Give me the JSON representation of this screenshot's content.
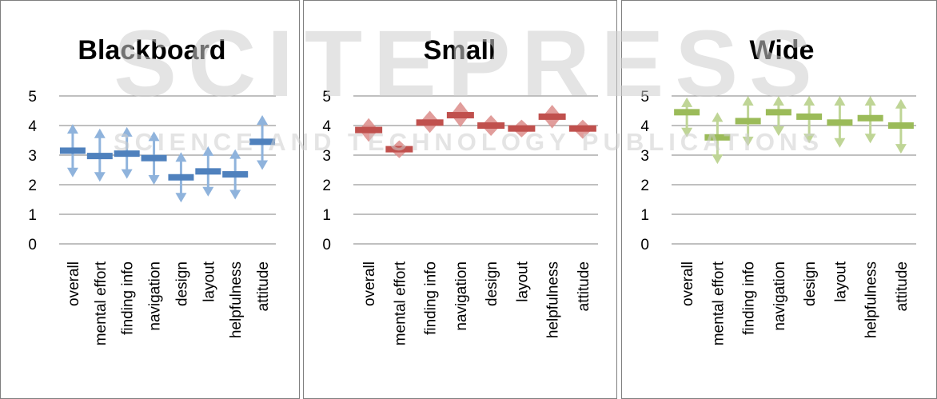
{
  "watermark": {
    "main": "SCITEPRESS",
    "sub": "SCIENCE AND TECHNOLOGY PUBLICATIONS",
    "color": "#bdbdbd"
  },
  "chart_data": [
    {
      "type": "error-bar",
      "title": "Blackboard",
      "color": "#4f81bd",
      "arrow_color": "#8fb3dc",
      "categories": [
        "overall",
        "mental effort",
        "finding info",
        "navigation",
        "design",
        "layout",
        "helpfulness",
        "attitude"
      ],
      "values": [
        3.15,
        2.97,
        3.05,
        2.9,
        2.25,
        2.45,
        2.35,
        3.45
      ],
      "upper": [
        4.05,
        3.9,
        3.95,
        3.8,
        3.1,
        3.3,
        3.2,
        4.35
      ],
      "lower": [
        2.25,
        2.1,
        2.2,
        2.0,
        1.4,
        1.6,
        1.5,
        2.5
      ],
      "ylim": [
        0,
        5
      ],
      "yticks": [
        "0",
        "1",
        "2",
        "3",
        "4",
        "5"
      ],
      "grid": true
    },
    {
      "type": "error-bar",
      "title": "Small",
      "color": "#c0504d",
      "arrow_color": "#dc8c8a",
      "categories": [
        "overall",
        "mental effort",
        "finding info",
        "navigation",
        "design",
        "layout",
        "helpfulness",
        "attitude"
      ],
      "values": [
        3.85,
        3.2,
        4.1,
        4.35,
        4.0,
        3.9,
        4.3,
        3.9
      ],
      "upper": [
        4.25,
        3.5,
        4.5,
        4.8,
        4.35,
        4.2,
        4.7,
        4.2
      ],
      "lower": [
        3.45,
        2.9,
        3.75,
        3.95,
        3.65,
        3.6,
        3.9,
        3.55
      ],
      "ylim": [
        0,
        5
      ],
      "yticks": [
        "0",
        "1",
        "2",
        "3",
        "4",
        "5"
      ],
      "grid": true
    },
    {
      "type": "error-bar",
      "title": "Wide",
      "color": "#9bbb59",
      "arrow_color": "#bfd596",
      "categories": [
        "overall",
        "mental effort",
        "finding info",
        "navigation",
        "design",
        "layout",
        "helpfulness",
        "attitude"
      ],
      "values": [
        4.45,
        3.6,
        4.15,
        4.45,
        4.3,
        4.1,
        4.25,
        4.0
      ],
      "upper": [
        4.95,
        4.45,
        5.0,
        5.0,
        5.0,
        5.0,
        5.0,
        4.9
      ],
      "lower": [
        3.6,
        2.7,
        3.3,
        3.65,
        3.4,
        3.25,
        3.4,
        3.05
      ],
      "ylim": [
        0,
        5
      ],
      "yticks": [
        "0",
        "1",
        "2",
        "3",
        "4",
        "5"
      ],
      "grid": true
    }
  ]
}
